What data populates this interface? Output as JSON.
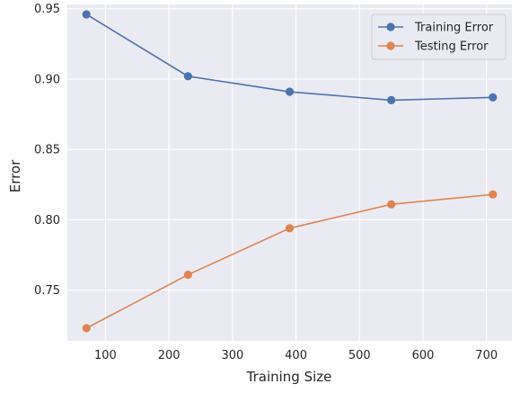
{
  "chart_data": {
    "type": "line",
    "xlabel": "Training Size",
    "ylabel": "Error",
    "xlim": [
      40,
      740
    ],
    "ylim": [
      0.714,
      0.953
    ],
    "xticks": [
      100,
      200,
      300,
      400,
      500,
      600,
      700
    ],
    "yticks": [
      0.75,
      0.8,
      0.85,
      0.9,
      0.95
    ],
    "xtick_labels": [
      "100",
      "200",
      "300",
      "400",
      "500",
      "600",
      "700"
    ],
    "ytick_labels": [
      "0.75",
      "0.80",
      "0.85",
      "0.90",
      "0.95"
    ],
    "grid": true,
    "legend_position": "top-right",
    "x": [
      70,
      230,
      390,
      550,
      710
    ],
    "series": [
      {
        "name": "Training Error",
        "color": "#4c72b0",
        "values": [
          0.946,
          0.902,
          0.891,
          0.885,
          0.887
        ]
      },
      {
        "name": "Testing Error",
        "color": "#dd8452",
        "values": [
          0.723,
          0.761,
          0.794,
          0.811,
          0.818
        ]
      }
    ]
  }
}
